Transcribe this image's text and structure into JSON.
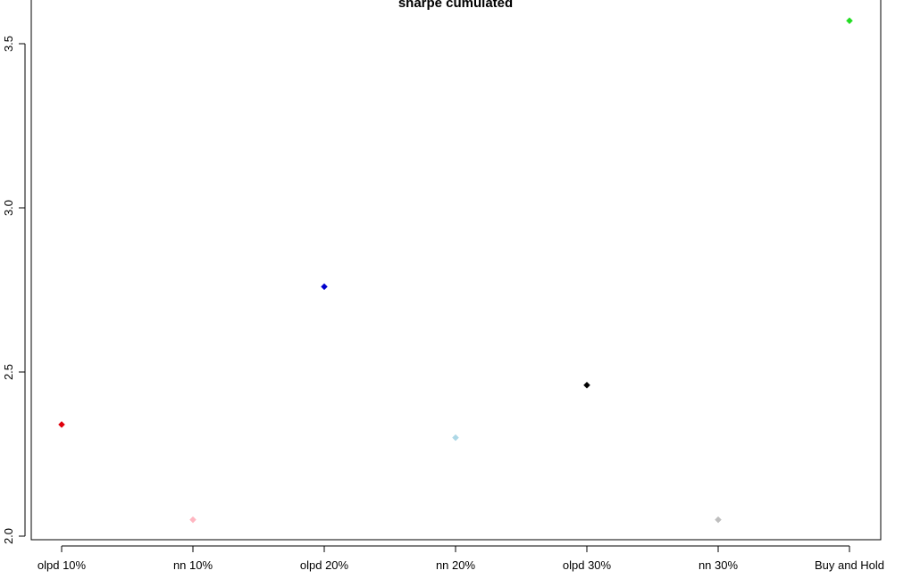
{
  "chart_data": {
    "type": "scatter",
    "title": "sharpe cumulated",
    "xlabel": "",
    "ylabel": "",
    "categories": [
      "olpd 10%",
      "nn 10%",
      "olpd 20%",
      "nn 20%",
      "olpd 30%",
      "nn 30%",
      "Buy and Hold"
    ],
    "values": [
      2.34,
      2.05,
      2.76,
      2.3,
      2.46,
      2.05,
      3.57
    ],
    "colors": [
      "#e0000b",
      "#ffb6c1",
      "#0000cd",
      "#add8e6",
      "#000000",
      "#bebebe",
      "#22dd22"
    ],
    "yticks": [
      2.0,
      2.5,
      3.0,
      3.5
    ],
    "ytick_labels": [
      "2.0",
      "2.5",
      "3.0",
      "3.5"
    ],
    "ylim": [
      2.0,
      3.6
    ],
    "grid": false,
    "marker": "diamond"
  }
}
